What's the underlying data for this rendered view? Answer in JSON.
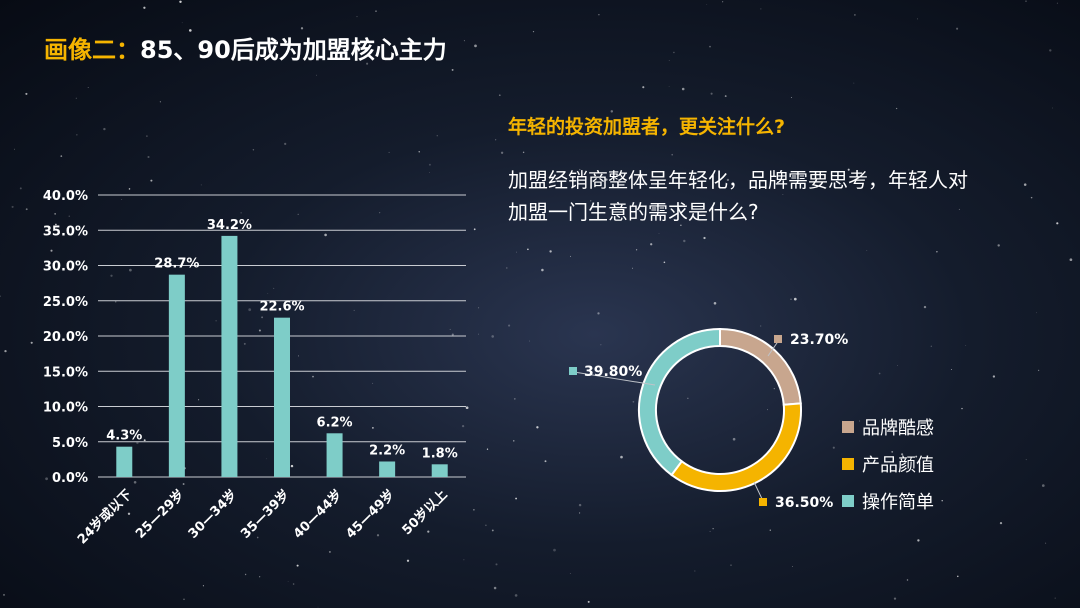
{
  "title": {
    "highlight": "画像二：",
    "text": "85、90后成为加盟核心主力"
  },
  "subtitle": "年轻的投资加盟者，更关注什么?",
  "body_text": "加盟经销商整体呈年轻化，品牌需要思考，年轻人对加盟一门生意的需求是什么?",
  "colors": {
    "bar": "#7ecdc8",
    "accent": "#f5b400",
    "brand": "#c8a68e",
    "design": "#f5b400",
    "simple": "#7ecdc8"
  },
  "chart_data": [
    {
      "type": "bar",
      "categories": [
        "24岁或以下",
        "25—29岁",
        "30—34岁",
        "35—39岁",
        "40—44岁",
        "45—49岁",
        "50岁以上"
      ],
      "values": [
        4.3,
        28.7,
        34.2,
        22.6,
        6.2,
        2.2,
        1.8
      ],
      "value_labels": [
        "4.3%",
        "28.7%",
        "34.2%",
        "22.6%",
        "6.2%",
        "2.2%",
        "1.8%"
      ],
      "ylim": [
        0,
        40
      ],
      "yticks": [
        "0.0%",
        "5.0%",
        "10.0%",
        "15.0%",
        "20.0%",
        "25.0%",
        "30.0%",
        "35.0%",
        "40.0%"
      ],
      "grid": true
    },
    {
      "type": "pie",
      "donut": true,
      "labels": [
        "品牌酷感",
        "产品颜值",
        "操作简单"
      ],
      "values": [
        23.7,
        36.5,
        39.8
      ],
      "value_labels": [
        "23.70%",
        "36.50%",
        "39.80%"
      ],
      "legend": "right"
    }
  ]
}
